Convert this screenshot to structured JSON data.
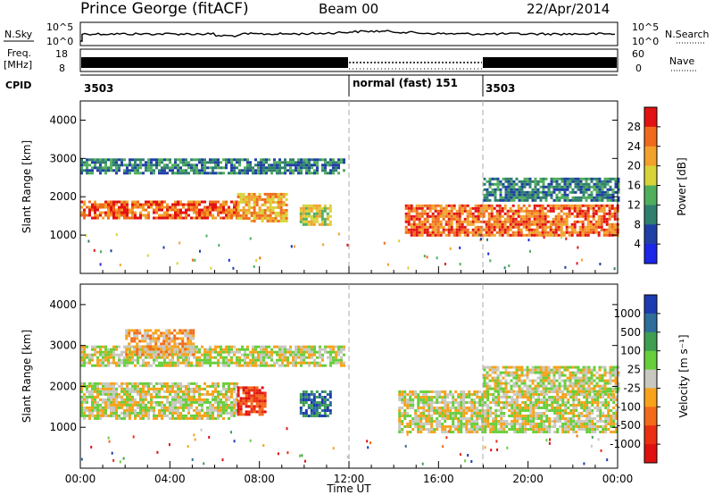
{
  "header": {
    "station": "Prince George (fitACF)",
    "beam": "Beam 00",
    "date": "22/Apr/2014"
  },
  "noise_panel": {
    "left_label": "N.Sky",
    "right_label": "N.Search",
    "left_ticks": [
      "10^5",
      "10^0"
    ],
    "right_ticks": [
      "10^5",
      "10^0"
    ]
  },
  "freq_panel": {
    "left_label_1": "Freq.",
    "left_label_2": "[MHz]",
    "right_label": "Nave",
    "left_ticks": [
      "18",
      "8"
    ],
    "right_ticks": [
      "60",
      "0"
    ]
  },
  "cpid_panel": {
    "label": "CPID",
    "segments": [
      {
        "label": "3503",
        "start_hour": 0
      },
      {
        "label": "normal (fast) 151",
        "start_hour": 12
      },
      {
        "label": "3503",
        "start_hour": 18
      }
    ]
  },
  "chart_data": [
    {
      "type": "heatmap",
      "name": "power",
      "ylabel": "Slant Range [km]",
      "xlim": [
        0,
        24
      ],
      "ylim": [
        0,
        4500
      ],
      "yticks": [
        "1000",
        "2000",
        "3000",
        "4000"
      ],
      "colorbar_label": "Power [dB]",
      "colorbar_ticks": [
        "4",
        "8",
        "12",
        "16",
        "20",
        "24",
        "28"
      ],
      "colors": [
        "#1c26e8",
        "#1f3fa6",
        "#2f7f6e",
        "#4fae5c",
        "#d8d338",
        "#f2a12a",
        "#f06a1c",
        "#e31212"
      ],
      "features": [
        {
          "t0": 0.0,
          "t1": 11.8,
          "r0": 2600,
          "r1": 3000,
          "level": 2
        },
        {
          "t0": 0.0,
          "t1": 7.0,
          "r0": 1450,
          "r1": 1900,
          "level": 6
        },
        {
          "t0": 7.0,
          "t1": 9.2,
          "r0": 1400,
          "r1": 2100,
          "level": 5
        },
        {
          "t0": 9.8,
          "t1": 11.2,
          "r0": 1300,
          "r1": 1800,
          "level": 4
        },
        {
          "t0": 14.5,
          "t1": 24.0,
          "r0": 1000,
          "r1": 1800,
          "level": 6
        },
        {
          "t0": 18.0,
          "t1": 24.0,
          "r0": 1900,
          "r1": 2500,
          "level": 2
        }
      ]
    },
    {
      "type": "heatmap",
      "name": "velocity",
      "ylabel": "Slant Range [km]",
      "xlabel": "Time UT",
      "xlim": [
        0,
        24
      ],
      "ylim": [
        0,
        4500
      ],
      "xticks": [
        "00:00",
        "04:00",
        "08:00",
        "12:00",
        "16:00",
        "20:00",
        "00:00"
      ],
      "yticks": [
        "1000",
        "2000",
        "3000",
        "4000"
      ],
      "colorbar_label": "Velocity [m s⁻¹]",
      "colorbar_ticks": [
        "1000",
        "500",
        "100",
        "25",
        "-25",
        "-100",
        "-500",
        "-1000"
      ],
      "colors": [
        "#1d3bb0",
        "#2d6e9a",
        "#3e9e52",
        "#66cf3a",
        "#c8c8c0",
        "#f7a21a",
        "#f26a1a",
        "#ea2f12",
        "#e01010"
      ],
      "features": [
        {
          "t0": 0.0,
          "t1": 11.8,
          "r0": 2500,
          "r1": 3000,
          "level": 4
        },
        {
          "t0": 2.0,
          "t1": 5.0,
          "r0": 2800,
          "r1": 3400,
          "level": 5
        },
        {
          "t0": 0.0,
          "t1": 7.0,
          "r0": 1200,
          "r1": 2100,
          "level": 4
        },
        {
          "t0": 7.0,
          "t1": 8.3,
          "r0": 1300,
          "r1": 2000,
          "level": 7
        },
        {
          "t0": 9.8,
          "t1": 11.2,
          "r0": 1300,
          "r1": 1900,
          "level": 1
        },
        {
          "t0": 14.2,
          "t1": 24.0,
          "r0": 900,
          "r1": 1900,
          "level": 4
        },
        {
          "t0": 18.0,
          "t1": 24.0,
          "r0": 1900,
          "r1": 2500,
          "level": 4
        }
      ]
    }
  ]
}
